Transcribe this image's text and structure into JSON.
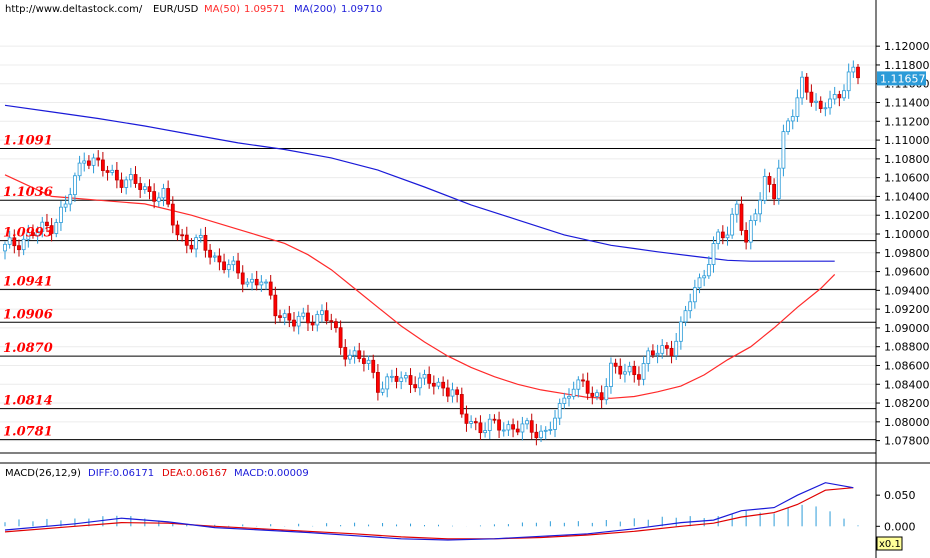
{
  "header": {
    "url": "http://www.deltastock.com/",
    "symbol": "EUR/USD",
    "ma50_label": "MA(50)",
    "ma50_value": "1.09571",
    "ma200_label": "MA(200)",
    "ma200_value": "1.09710"
  },
  "colors": {
    "up_fill": "#ffffff",
    "up_stroke": "#2b9bd8",
    "down_fill": "#ff0000",
    "down_stroke": "#c00000",
    "ma50": "#ff2a2a",
    "ma200": "#1a1ad8",
    "level_text": "#ff0000",
    "macd_diff": "#1a1ad8",
    "macd_dea": "#e00000",
    "macd_hist": "#2b9bd8"
  },
  "chart_data": [
    {
      "type": "candlestick",
      "ylim": [
        1.077,
        1.123
      ],
      "y_ticks": [
        "1.12000",
        "1.11800",
        "1.11600",
        "1.11400",
        "1.11200",
        "1.11000",
        "1.10800",
        "1.10600",
        "1.10400",
        "1.10200",
        "1.10000",
        "1.09800",
        "1.09600",
        "1.09400",
        "1.09200",
        "1.09000",
        "1.08800",
        "1.08600",
        "1.08400",
        "1.08200",
        "1.08000",
        "1.07800"
      ],
      "last_price": "1.11657",
      "levels": [
        {
          "label": "1.1091",
          "value": 1.1091
        },
        {
          "label": "1.1036",
          "value": 1.1036
        },
        {
          "label": "1.0993",
          "value": 1.0993
        },
        {
          "label": "1.0941",
          "value": 1.0941
        },
        {
          "label": "1.0906",
          "value": 1.0906
        },
        {
          "label": "1.0870",
          "value": 1.087
        },
        {
          "label": "1.0814",
          "value": 1.0814
        },
        {
          "label": "1.0781",
          "value": 1.0781
        }
      ],
      "anchors": [
        [
          0,
          1.0985
        ],
        [
          6,
          1.1
        ],
        [
          10,
          1.101
        ],
        [
          13,
          1.103
        ],
        [
          17,
          1.1085
        ],
        [
          22,
          1.1065
        ],
        [
          27,
          1.1055
        ],
        [
          31,
          1.1045
        ],
        [
          34,
          1.104
        ],
        [
          37,
          1.1
        ],
        [
          40,
          1.099
        ],
        [
          42,
          1.099
        ],
        [
          45,
          1.0975
        ],
        [
          48,
          1.0965
        ],
        [
          52,
          1.095
        ],
        [
          55,
          1.095
        ],
        [
          58,
          1.092
        ],
        [
          62,
          1.0905
        ],
        [
          65,
          1.091
        ],
        [
          68,
          1.0915
        ],
        [
          70,
          1.0905
        ],
        [
          72,
          1.088
        ],
        [
          75,
          1.087
        ],
        [
          78,
          1.086
        ],
        [
          80,
          1.084
        ],
        [
          84,
          1.0845
        ],
        [
          88,
          1.0845
        ],
        [
          92,
          1.084
        ],
        [
          96,
          1.0835
        ],
        [
          98,
          1.0805
        ],
        [
          102,
          1.0795
        ],
        [
          106,
          1.0795
        ],
        [
          110,
          1.0795
        ],
        [
          113,
          1.079
        ],
        [
          116,
          1.079
        ],
        [
          119,
          1.081
        ],
        [
          121,
          1.0835
        ],
        [
          124,
          1.0845
        ],
        [
          126,
          1.082
        ],
        [
          128,
          1.083
        ],
        [
          130,
          1.086
        ],
        [
          133,
          1.085
        ],
        [
          136,
          1.0855
        ],
        [
          138,
          1.087
        ],
        [
          141,
          1.0875
        ],
        [
          143,
          1.088
        ],
        [
          145,
          1.09
        ],
        [
          147,
          1.093
        ],
        [
          149,
          1.095
        ],
        [
          151,
          1.0975
        ],
        [
          153,
          1.0995
        ],
        [
          155,
          1.1
        ],
        [
          157,
          1.1035
        ],
        [
          159,
          1.099
        ],
        [
          161,
          1.102
        ],
        [
          163,
          1.106
        ],
        [
          165,
          1.1045
        ],
        [
          167,
          1.11
        ],
        [
          169,
          1.113
        ],
        [
          171,
          1.1165
        ],
        [
          173,
          1.1145
        ],
        [
          175,
          1.1125
        ],
        [
          177,
          1.115
        ],
        [
          179,
          1.1145
        ],
        [
          181,
          1.117
        ],
        [
          183,
          1.1166
        ]
      ],
      "count": 184,
      "ma50": [
        [
          0,
          1.1063
        ],
        [
          10,
          1.104
        ],
        [
          20,
          1.1036
        ],
        [
          30,
          1.1032
        ],
        [
          40,
          1.102
        ],
        [
          50,
          1.1005
        ],
        [
          60,
          1.099
        ],
        [
          65,
          1.0978
        ],
        [
          70,
          1.0962
        ],
        [
          75,
          1.0942
        ],
        [
          80,
          1.0922
        ],
        [
          85,
          1.0902
        ],
        [
          90,
          1.0885
        ],
        [
          95,
          1.087
        ],
        [
          100,
          1.0858
        ],
        [
          105,
          1.0848
        ],
        [
          110,
          1.084
        ],
        [
          115,
          1.0834
        ],
        [
          120,
          1.083
        ],
        [
          125,
          1.0826
        ],
        [
          130,
          1.0825
        ],
        [
          135,
          1.0827
        ],
        [
          140,
          1.0832
        ],
        [
          145,
          1.0838
        ],
        [
          150,
          1.085
        ],
        [
          155,
          1.0866
        ],
        [
          160,
          1.088
        ],
        [
          165,
          1.09
        ],
        [
          170,
          1.0922
        ],
        [
          175,
          1.0942
        ],
        [
          178,
          1.0957
        ]
      ],
      "ma200": [
        [
          0,
          1.1137
        ],
        [
          10,
          1.113
        ],
        [
          20,
          1.1123
        ],
        [
          30,
          1.1115
        ],
        [
          40,
          1.1106
        ],
        [
          50,
          1.1097
        ],
        [
          60,
          1.109
        ],
        [
          70,
          1.1081
        ],
        [
          80,
          1.1068
        ],
        [
          90,
          1.105
        ],
        [
          100,
          1.1031
        ],
        [
          110,
          1.1015
        ],
        [
          120,
          1.0999
        ],
        [
          130,
          1.0988
        ],
        [
          140,
          1.0981
        ],
        [
          150,
          1.0975
        ],
        [
          155,
          1.0972
        ],
        [
          160,
          1.0971
        ],
        [
          170,
          1.0971
        ],
        [
          178,
          1.0971
        ]
      ]
    },
    {
      "type": "macd",
      "title": "MACD(26,12,9)",
      "diff_label": "DIFF:0.06171",
      "dea_label": "DEA:0.06167",
      "macd_label": "MACD:0.00009",
      "y_ticks": [
        "0.050",
        "0.000"
      ],
      "ylim": [
        -0.03,
        0.1
      ],
      "multiplier": "x0.1",
      "diff": [
        [
          0,
          -0.006
        ],
        [
          15,
          0.004
        ],
        [
          25,
          0.013
        ],
        [
          35,
          0.007
        ],
        [
          45,
          -0.002
        ],
        [
          55,
          -0.006
        ],
        [
          65,
          -0.01
        ],
        [
          75,
          -0.015
        ],
        [
          85,
          -0.02
        ],
        [
          95,
          -0.022
        ],
        [
          105,
          -0.02
        ],
        [
          115,
          -0.016
        ],
        [
          125,
          -0.012
        ],
        [
          135,
          -0.004
        ],
        [
          145,
          0.006
        ],
        [
          152,
          0.01
        ],
        [
          158,
          0.025
        ],
        [
          165,
          0.03
        ],
        [
          170,
          0.05
        ],
        [
          176,
          0.07
        ],
        [
          182,
          0.062
        ]
      ],
      "dea": [
        [
          0,
          -0.009
        ],
        [
          15,
          0.0
        ],
        [
          25,
          0.006
        ],
        [
          35,
          0.005
        ],
        [
          45,
          0.0
        ],
        [
          55,
          -0.004
        ],
        [
          65,
          -0.008
        ],
        [
          75,
          -0.012
        ],
        [
          85,
          -0.017
        ],
        [
          95,
          -0.02
        ],
        [
          105,
          -0.02
        ],
        [
          115,
          -0.018
        ],
        [
          125,
          -0.014
        ],
        [
          135,
          -0.008
        ],
        [
          145,
          0.0
        ],
        [
          152,
          0.005
        ],
        [
          158,
          0.015
        ],
        [
          165,
          0.022
        ],
        [
          170,
          0.035
        ],
        [
          176,
          0.058
        ],
        [
          182,
          0.062
        ]
      ]
    }
  ]
}
